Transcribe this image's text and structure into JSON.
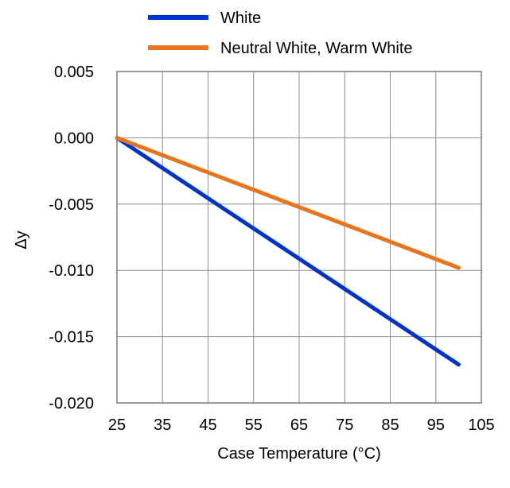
{
  "chart_data": {
    "type": "line",
    "title": "",
    "xlabel": "Case Temperature (°C)",
    "ylabel": "Δy",
    "xlim": [
      25,
      105
    ],
    "ylim": [
      -0.02,
      0.005
    ],
    "x_ticks": [
      25,
      35,
      45,
      55,
      65,
      75,
      85,
      95,
      105
    ],
    "y_ticks": [
      0.005,
      0.0,
      -0.005,
      -0.01,
      -0.015,
      -0.02
    ],
    "x_tick_labels": [
      "25",
      "35",
      "45",
      "55",
      "65",
      "75",
      "85",
      "95",
      "105"
    ],
    "y_tick_labels": [
      "0.005",
      "0.000",
      "-0.005",
      "-0.010",
      "-0.015",
      "-0.020"
    ],
    "grid": true,
    "legend_position": "top",
    "series": [
      {
        "name": "White",
        "color": "#0033cc",
        "x": [
          25,
          100
        ],
        "y": [
          0.0,
          -0.0171
        ]
      },
      {
        "name": "Neutral White, Warm White",
        "color": "#e8741b",
        "x": [
          25,
          100
        ],
        "y": [
          0.0,
          -0.0098
        ]
      }
    ]
  }
}
